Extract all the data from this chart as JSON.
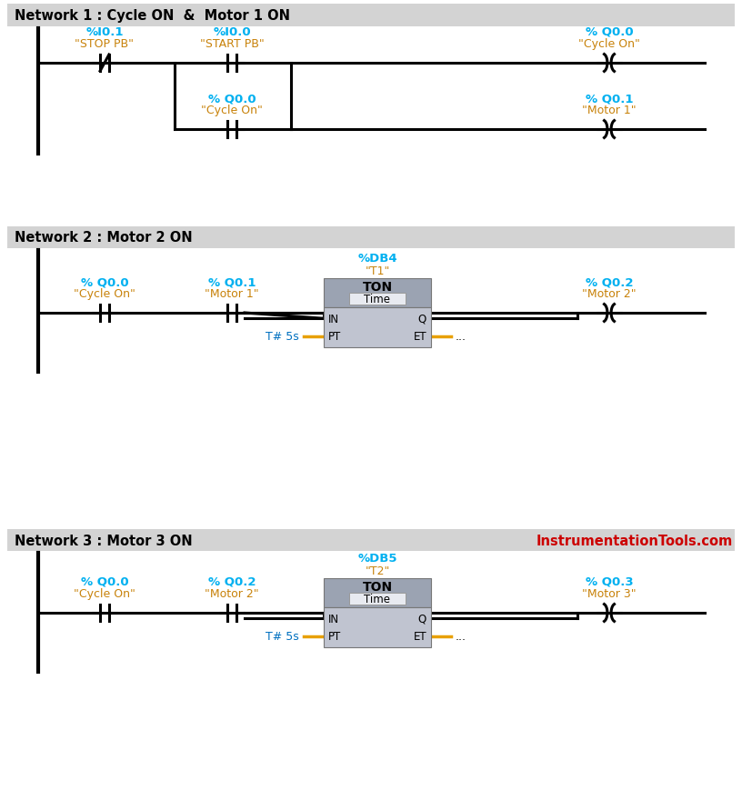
{
  "bg_color": "#ffffff",
  "header_bg": "#d3d3d3",
  "cyan": "#00b0f0",
  "orange": "#c8820a",
  "red": "#cc0000",
  "blue": "#0070c0",
  "black": "#000000",
  "ton_bg_top": "#9ba3b2",
  "ton_bg_bot": "#c0c4d0",
  "ton_inner_bg": "#e8eaf0",
  "net1_title": "Network 1 : Cycle ON  &  Motor 1 ON",
  "net2_title": "Network 2 : Motor 2 ON",
  "net3_title": "Network 3 : Motor 3 ON",
  "watermark": "InstrumentationTools.com",
  "figw": 8.16,
  "figh": 8.7,
  "dpi": 100
}
